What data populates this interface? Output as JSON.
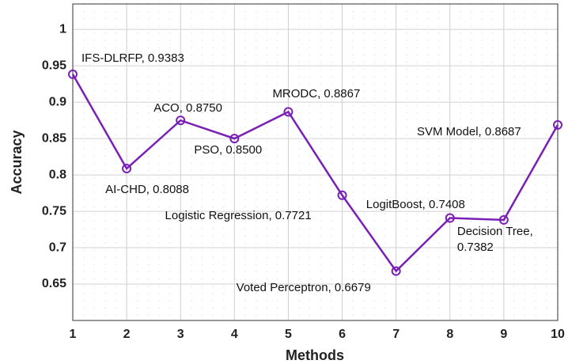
{
  "chart_data": {
    "type": "line",
    "x_label": "Methods",
    "y_label": "Accuracy",
    "x": [
      1,
      2,
      3,
      4,
      5,
      6,
      7,
      8,
      9,
      10
    ],
    "series": [
      {
        "color": "#7a1fb5",
        "values": [
          0.9383,
          0.8088,
          0.875,
          0.85,
          0.8867,
          0.7721,
          0.6679,
          0.7408,
          0.7382,
          0.8687
        ],
        "value_labels": [
          "IFS-DLRFP, 0.9383",
          "AI-CHD, 0.8088",
          "ACO, 0.8750",
          "PSO, 0.8500",
          "MRODC, 0.8867",
          "Logistic Regression, 0.7721",
          "Voted Perceptron, 0.6679",
          "LogitBoost, 0.7408",
          "Decision Tree,\n0.7382",
          "SVM Model, 0.8687"
        ]
      }
    ],
    "xlim": [
      1,
      10
    ],
    "ylim": [
      0.6,
      1.035
    ],
    "xticks": [
      1,
      2,
      3,
      4,
      5,
      6,
      7,
      8,
      9,
      10
    ],
    "yticks": [
      0.65,
      0.7,
      0.75,
      0.8,
      0.85,
      0.9,
      0.95,
      1
    ],
    "grid": true
  }
}
